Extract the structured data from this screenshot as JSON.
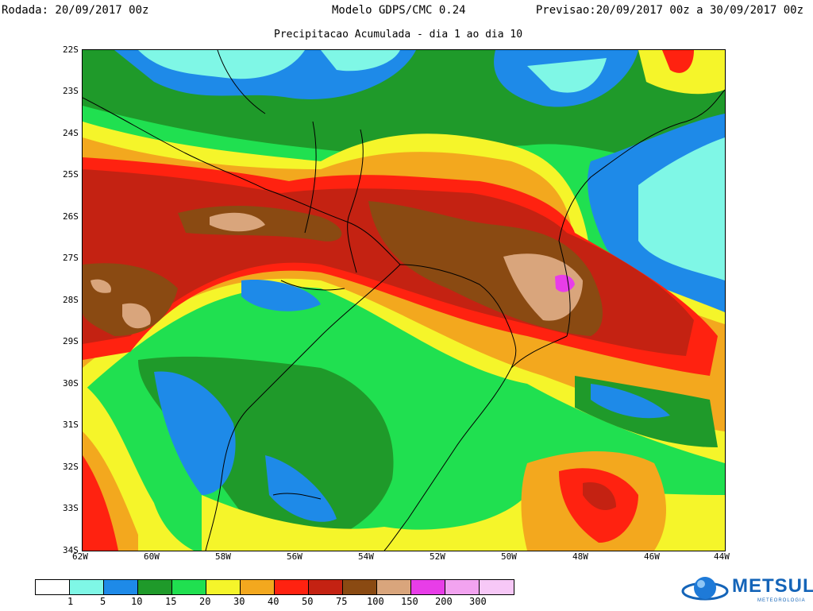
{
  "header": {
    "run": "Rodada: 20/09/2017 00z",
    "model": "Modelo GDPS/CMC 0.24",
    "forecast": "Previsao:20/09/2017 00z a 30/09/2017 00z",
    "subtitle": "Precipitacao Acumulada - dia 1 ao dia 10"
  },
  "axes": {
    "lat_labels": [
      "22S",
      "23S",
      "24S",
      "25S",
      "26S",
      "27S",
      "28S",
      "29S",
      "30S",
      "31S",
      "32S",
      "33S",
      "34S"
    ],
    "lon_labels": [
      "62W",
      "60W",
      "58W",
      "56W",
      "54W",
      "52W",
      "50W",
      "48W",
      "46W",
      "44W"
    ]
  },
  "legend": {
    "thresholds": [
      "1",
      "5",
      "10",
      "15",
      "20",
      "30",
      "40",
      "50",
      "75",
      "100",
      "150",
      "200",
      "300"
    ],
    "colors": [
      "#ffffff",
      "#7ff7e6",
      "#1e8ae8",
      "#1f9a2a",
      "#20e050",
      "#f5f52a",
      "#f3a81e",
      "#ff2210",
      "#c42212",
      "#8a4a12",
      "#d9a57c",
      "#e83de8",
      "#f2a3f0",
      "#f7c8f7"
    ]
  },
  "branding": {
    "logo_text": "METSUL",
    "logo_subtext": "METEOROLOGIA"
  }
}
